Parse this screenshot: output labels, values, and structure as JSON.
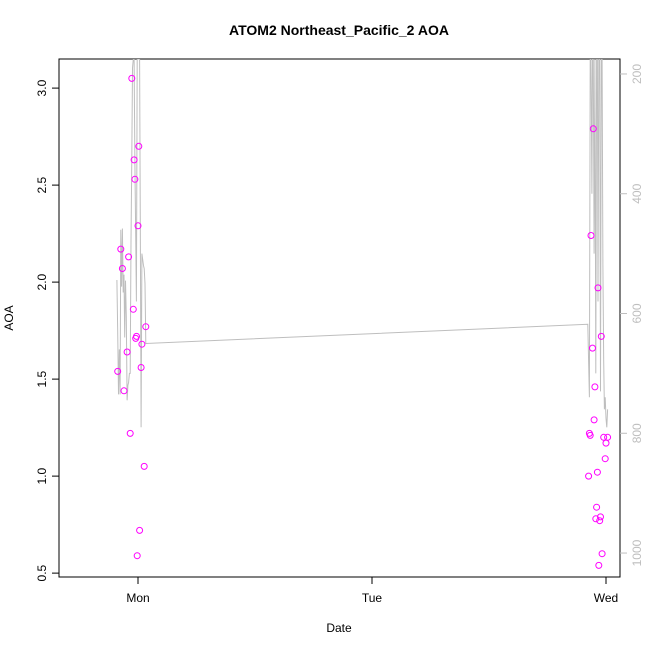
{
  "chart_data": {
    "type": "scatter",
    "title": "ATOM2 Northeast_Pacific_2 AOA",
    "xlabel": "Date",
    "ylabel": "AOA",
    "x_ticks": [
      "Mon",
      "Tue",
      "Wed"
    ],
    "y_ticks": [
      "0.5",
      "1.0",
      "1.5",
      "2.0",
      "2.5",
      "3.0"
    ],
    "y2_ticks": [
      "200",
      "400",
      "600",
      "800",
      "1000"
    ],
    "ylim": [
      0.48,
      3.15
    ],
    "y2lim": [
      1040,
      175
    ],
    "colors": {
      "points": "#ff00ff",
      "line": "#bebebe",
      "axis": "#000000"
    },
    "points": [
      {
        "x": "Sun 21:55",
        "y": 1.54
      },
      {
        "x": "Sun 22:14",
        "y": 2.17
      },
      {
        "x": "Sun 22:24",
        "y": 2.07
      },
      {
        "x": "Sun 22:34",
        "y": 1.44
      },
      {
        "x": "Sun 22:53",
        "y": 1.64
      },
      {
        "x": "Sun 23:02",
        "y": 2.13
      },
      {
        "x": "Sun 23:12",
        "y": 1.22
      },
      {
        "x": "Sun 23:22",
        "y": 3.05
      },
      {
        "x": "Sun 23:31",
        "y": 1.86
      },
      {
        "x": "Sun 23:36",
        "y": 2.63
      },
      {
        "x": "Sun 23:41",
        "y": 2.53
      },
      {
        "x": "Sun 23:46",
        "y": 1.71
      },
      {
        "x": "Sun 23:51",
        "y": 1.72
      },
      {
        "x": "Sun 23:55",
        "y": 0.59
      },
      {
        "x": "Mon 00:00",
        "y": 2.29
      },
      {
        "x": "Mon 00:05",
        "y": 2.7
      },
      {
        "x": "Mon 00:10",
        "y": 0.72
      },
      {
        "x": "Mon 00:19",
        "y": 1.56
      },
      {
        "x": "Mon 00:24",
        "y": 1.68
      },
      {
        "x": "Mon 00:38",
        "y": 1.05
      },
      {
        "x": "Mon 00:48",
        "y": 1.77
      },
      {
        "x": "Tue 22:13",
        "y": 1.0
      },
      {
        "x": "Tue 22:18",
        "y": 1.22
      },
      {
        "x": "Tue 22:23",
        "y": 1.21
      },
      {
        "x": "Tue 22:28",
        "y": 2.24
      },
      {
        "x": "Tue 22:37",
        "y": 1.66
      },
      {
        "x": "Tue 22:42",
        "y": 2.79
      },
      {
        "x": "Tue 22:47",
        "y": 1.29
      },
      {
        "x": "Tue 22:52",
        "y": 1.46
      },
      {
        "x": "Tue 22:57",
        "y": 0.78
      },
      {
        "x": "Tue 23:02",
        "y": 0.84
      },
      {
        "x": "Tue 23:07",
        "y": 1.02
      },
      {
        "x": "Tue 23:11",
        "y": 1.97
      },
      {
        "x": "Tue 23:16",
        "y": 0.54
      },
      {
        "x": "Tue 23:21",
        "y": 0.77
      },
      {
        "x": "Tue 23:26",
        "y": 0.79
      },
      {
        "x": "Tue 23:31",
        "y": 1.72
      },
      {
        "x": "Tue 23:36",
        "y": 0.6
      },
      {
        "x": "Tue 23:46",
        "y": 1.2
      },
      {
        "x": "Tue 23:55",
        "y": 1.09
      },
      {
        "x": "Wed 00:00",
        "y": 1.17
      },
      {
        "x": "Wed 00:10",
        "y": 1.2
      }
    ],
    "line": [
      {
        "x": "Sun 21:50",
        "y": 544
      },
      {
        "x": "Sun 21:55",
        "y": 630
      },
      {
        "x": "Sun 22:00",
        "y": 735
      },
      {
        "x": "Sun 22:05",
        "y": 660
      },
      {
        "x": "Sun 22:10",
        "y": 735
      },
      {
        "x": "Sun 22:14",
        "y": 460
      },
      {
        "x": "Sun 22:19",
        "y": 555
      },
      {
        "x": "Sun 22:24",
        "y": 458
      },
      {
        "x": "Sun 22:29",
        "y": 565
      },
      {
        "x": "Sun 22:34",
        "y": 535
      },
      {
        "x": "Sun 22:38",
        "y": 640
      },
      {
        "x": "Sun 22:43",
        "y": 545
      },
      {
        "x": "Sun 22:48",
        "y": 605
      },
      {
        "x": "Sun 22:53",
        "y": 745
      },
      {
        "x": "Sun 22:58",
        "y": 720
      },
      {
        "x": "Sun 23:02",
        "y": 715
      },
      {
        "x": "Sun 23:07",
        "y": 700
      },
      {
        "x": "Sun 23:12",
        "y": 700
      },
      {
        "x": "Sun 23:17",
        "y": 480
      },
      {
        "x": "Sun 23:22",
        "y": 340
      },
      {
        "x": "Sun 23:26",
        "y": 190
      },
      {
        "x": "Sun 23:31",
        "y": 175
      },
      {
        "x": "Sun 23:36",
        "y": 175
      },
      {
        "x": "Sun 23:41",
        "y": 350
      },
      {
        "x": "Sun 23:46",
        "y": 470
      },
      {
        "x": "Sun 23:50",
        "y": 580
      },
      {
        "x": "Sun 23:55",
        "y": 175
      },
      {
        "x": "Mon 00:00",
        "y": 175
      },
      {
        "x": "Mon 00:05",
        "y": 175
      },
      {
        "x": "Mon 00:10",
        "y": 175
      },
      {
        "x": "Mon 00:14",
        "y": 450
      },
      {
        "x": "Mon 00:19",
        "y": 790
      },
      {
        "x": "Mon 00:24",
        "y": 500
      },
      {
        "x": "Mon 00:29",
        "y": 510
      },
      {
        "x": "Mon 00:34",
        "y": 520
      },
      {
        "x": "Mon 00:38",
        "y": 525
      },
      {
        "x": "Mon 00:43",
        "y": 550
      },
      {
        "x": "Mon 00:48",
        "y": 650
      },
      {
        "x": "Tue 22:08",
        "y": 618
      },
      {
        "x": "Tue 22:13",
        "y": 680
      },
      {
        "x": "Tue 22:18",
        "y": 740
      },
      {
        "x": "Tue 22:23",
        "y": 175
      },
      {
        "x": "Tue 22:28",
        "y": 175
      },
      {
        "x": "Tue 22:33",
        "y": 400
      },
      {
        "x": "Tue 22:37",
        "y": 175
      },
      {
        "x": "Tue 22:42",
        "y": 175
      },
      {
        "x": "Tue 22:47",
        "y": 500
      },
      {
        "x": "Tue 22:52",
        "y": 175
      },
      {
        "x": "Tue 22:57",
        "y": 700
      },
      {
        "x": "Tue 23:02",
        "y": 175
      },
      {
        "x": "Tue 23:07",
        "y": 175
      },
      {
        "x": "Tue 23:11",
        "y": 580
      },
      {
        "x": "Tue 23:16",
        "y": 175
      },
      {
        "x": "Tue 23:21",
        "y": 175
      },
      {
        "x": "Tue 23:26",
        "y": 730
      },
      {
        "x": "Tue 23:31",
        "y": 175
      },
      {
        "x": "Tue 23:36",
        "y": 175
      },
      {
        "x": "Tue 23:41",
        "y": 520
      },
      {
        "x": "Tue 23:46",
        "y": 680
      },
      {
        "x": "Tue 23:50",
        "y": 760
      },
      {
        "x": "Tue 23:55",
        "y": 740
      },
      {
        "x": "Wed 00:00",
        "y": 775
      },
      {
        "x": "Wed 00:05",
        "y": 790
      },
      {
        "x": "Wed 00:10",
        "y": 760
      }
    ]
  }
}
